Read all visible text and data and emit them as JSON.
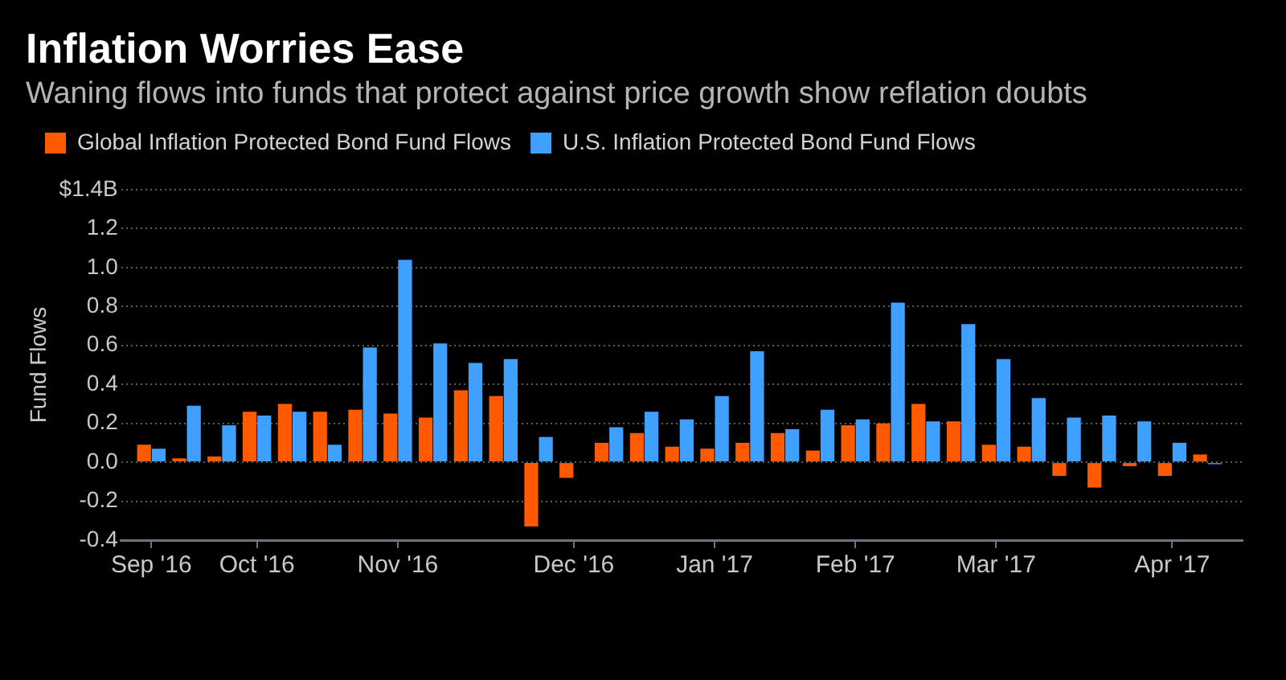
{
  "chart_data": {
    "type": "bar",
    "title": "Inflation Worries Ease",
    "subtitle": "Waning flows into funds that protect against price growth show reflation doubts",
    "ylabel": "Fund Flows",
    "x": [
      "2016-09-14",
      "2016-09-21",
      "2016-09-28",
      "2016-10-05",
      "2016-10-12",
      "2016-10-19",
      "2016-10-26",
      "2016-11-02",
      "2016-11-09",
      "2016-11-16",
      "2016-11-23",
      "2016-11-30",
      "2016-12-07",
      "2016-12-14",
      "2016-12-21",
      "2016-12-28",
      "2017-01-04",
      "2017-01-11",
      "2017-01-18",
      "2017-01-25",
      "2017-02-01",
      "2017-02-08",
      "2017-02-15",
      "2017-02-22",
      "2017-03-01",
      "2017-03-08",
      "2017-03-15",
      "2017-03-22",
      "2017-03-29",
      "2017-04-05",
      "2017-04-12"
    ],
    "series": [
      {
        "name": "Global Inflation Protected Bond Fund Flows",
        "color": "#ff5a00",
        "values": [
          0.09,
          0.02,
          0.03,
          0.26,
          0.3,
          0.26,
          0.27,
          0.25,
          0.23,
          0.37,
          0.34,
          -0.33,
          -0.08,
          0.1,
          0.15,
          0.08,
          0.07,
          0.1,
          0.15,
          0.06,
          0.19,
          0.2,
          0.3,
          0.21,
          0.09,
          0.08,
          -0.07,
          -0.13,
          -0.02,
          -0.07,
          0.04
        ]
      },
      {
        "name": "U.S. Inflation Protected Bond Fund Flows",
        "color": "#40a0ff",
        "values": [
          0.07,
          0.29,
          0.19,
          0.24,
          0.26,
          0.09,
          0.59,
          1.04,
          0.61,
          0.51,
          0.53,
          0.13,
          null,
          0.18,
          0.26,
          0.22,
          0.34,
          0.57,
          0.17,
          0.27,
          0.22,
          0.82,
          0.21,
          0.71,
          0.53,
          0.33,
          0.23,
          0.24,
          0.21,
          0.1,
          -0.01
        ]
      }
    ],
    "xlim": [
      "2016-09-08",
      "2017-04-19"
    ],
    "xticks": [
      {
        "value": "2016-09-14",
        "label": "Sep '16"
      },
      {
        "value": "2016-10-05",
        "label": "Oct '16"
      },
      {
        "value": "2016-11-02",
        "label": "Nov '16"
      },
      {
        "value": "2016-12-07",
        "label": "Dec '16"
      },
      {
        "value": "2017-01-04",
        "label": "Jan '17"
      },
      {
        "value": "2017-02-01",
        "label": "Feb '17"
      },
      {
        "value": "2017-03-01",
        "label": "Mar '17"
      },
      {
        "value": "2017-04-05",
        "label": "Apr '17"
      }
    ],
    "ylim": [
      -0.4,
      1.4
    ],
    "yticks": [
      -0.4,
      -0.2,
      {
        "value": 0,
        "label": "0.0"
      },
      0.2,
      0.4,
      0.6,
      0.8,
      {
        "value": 1,
        "label": "1.0"
      },
      1.2,
      {
        "value": 1.4,
        "label": "$1.4B"
      }
    ],
    "grid": "y",
    "legend": "top left"
  }
}
